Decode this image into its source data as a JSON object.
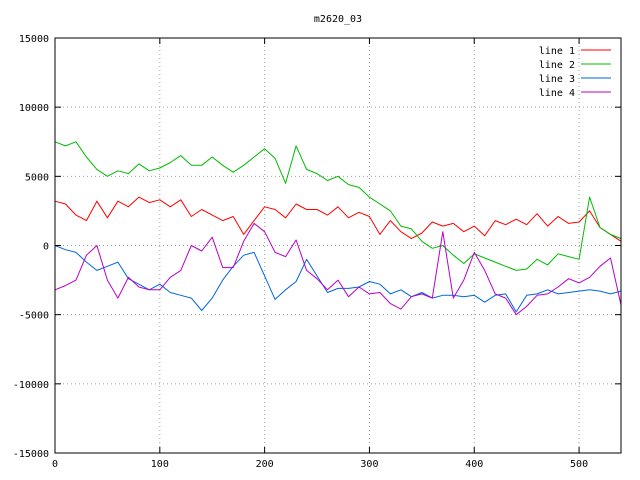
{
  "chart_data": {
    "type": "line",
    "title": "m2620_03",
    "xlabel": "",
    "ylabel": "",
    "xlim": [
      0,
      540
    ],
    "ylim": [
      -15000,
      15000
    ],
    "xticks": [
      0,
      100,
      200,
      300,
      400,
      500
    ],
    "yticks": [
      -15000,
      -10000,
      -5000,
      0,
      5000,
      10000,
      15000
    ],
    "grid": true,
    "legend_position": "top-right",
    "series": [
      {
        "name": "line 1",
        "color": "#ff0000",
        "x": [
          0,
          10,
          20,
          30,
          40,
          50,
          60,
          70,
          80,
          90,
          100,
          110,
          120,
          130,
          140,
          150,
          160,
          170,
          180,
          190,
          200,
          210,
          220,
          230,
          240,
          250,
          260,
          270,
          280,
          290,
          300,
          310,
          320,
          330,
          340,
          350,
          360,
          370,
          380,
          390,
          400,
          410,
          420,
          430,
          440,
          450,
          460,
          470,
          480,
          490,
          500,
          510,
          520,
          530,
          540
        ],
        "y": [
          3200,
          3000,
          2200,
          1800,
          3200,
          2000,
          3200,
          2800,
          3500,
          3100,
          3300,
          2800,
          3300,
          2100,
          2600,
          2200,
          1800,
          2100,
          800,
          1800,
          2800,
          2600,
          2000,
          3000,
          2600,
          2600,
          2200,
          2800,
          2000,
          2400,
          2100,
          800,
          1800,
          1000,
          500,
          900,
          1700,
          1400,
          1600,
          1000,
          1400,
          700,
          1800,
          1500,
          1900,
          1500,
          2300,
          1400,
          2100,
          1600,
          1700,
          2500,
          1300,
          800,
          300
        ]
      },
      {
        "name": "line 2",
        "color": "#00bb00",
        "x": [
          0,
          10,
          20,
          30,
          40,
          50,
          60,
          70,
          80,
          90,
          100,
          110,
          120,
          130,
          140,
          150,
          160,
          170,
          180,
          190,
          200,
          210,
          220,
          230,
          240,
          250,
          260,
          270,
          280,
          290,
          300,
          310,
          320,
          330,
          340,
          350,
          360,
          370,
          380,
          390,
          400,
          410,
          420,
          430,
          440,
          450,
          460,
          470,
          480,
          490,
          500,
          510,
          520,
          530,
          540
        ],
        "y": [
          7500,
          7200,
          7500,
          6400,
          5500,
          5000,
          5400,
          5200,
          5900,
          5400,
          5600,
          6000,
          6500,
          5800,
          5800,
          6400,
          5800,
          5300,
          5800,
          6400,
          7000,
          6300,
          4500,
          7200,
          5500,
          5200,
          4700,
          5000,
          4400,
          4200,
          3500,
          3000,
          2500,
          1400,
          1200,
          300,
          -200,
          0,
          -700,
          -1300,
          -600,
          -900,
          -1200,
          -1500,
          -1800,
          -1700,
          -1000,
          -1400,
          -600,
          -800,
          -1000,
          3500,
          1300,
          800,
          500
        ]
      },
      {
        "name": "line 3",
        "color": "#0066dd",
        "x": [
          0,
          10,
          20,
          30,
          40,
          50,
          60,
          70,
          80,
          90,
          100,
          110,
          120,
          130,
          140,
          150,
          160,
          170,
          180,
          190,
          200,
          210,
          220,
          230,
          240,
          250,
          260,
          270,
          280,
          290,
          300,
          310,
          320,
          330,
          340,
          350,
          360,
          370,
          380,
          390,
          400,
          410,
          420,
          430,
          440,
          450,
          460,
          470,
          480,
          490,
          500,
          510,
          520,
          530,
          540
        ],
        "y": [
          0,
          -300,
          -500,
          -1200,
          -1800,
          -1500,
          -1200,
          -2400,
          -2800,
          -3200,
          -2800,
          -3400,
          -3600,
          -3800,
          -4700,
          -3800,
          -2500,
          -1500,
          -700,
          -500,
          -2200,
          -3900,
          -3200,
          -2600,
          -1000,
          -2200,
          -3400,
          -3100,
          -3100,
          -3000,
          -2600,
          -2800,
          -3500,
          -3200,
          -3700,
          -3400,
          -3800,
          -3600,
          -3600,
          -3700,
          -3600,
          -4100,
          -3600,
          -3500,
          -4800,
          -3600,
          -3500,
          -3200,
          -3500,
          -3400,
          -3300,
          -3200,
          -3300,
          -3500,
          -3300
        ]
      },
      {
        "name": "line 4",
        "color": "#bb00cc",
        "x": [
          0,
          10,
          20,
          30,
          40,
          50,
          60,
          70,
          80,
          90,
          100,
          110,
          120,
          130,
          140,
          150,
          160,
          170,
          180,
          190,
          200,
          210,
          220,
          230,
          240,
          250,
          260,
          270,
          280,
          290,
          300,
          310,
          320,
          330,
          340,
          350,
          360,
          370,
          380,
          390,
          400,
          410,
          420,
          430,
          440,
          450,
          460,
          470,
          480,
          490,
          500,
          510,
          520,
          530,
          540
        ],
        "y": [
          -3200,
          -2900,
          -2500,
          -700,
          0,
          -2500,
          -3800,
          -2300,
          -3000,
          -3200,
          -3200,
          -2300,
          -1800,
          0,
          -400,
          600,
          -1600,
          -1600,
          300,
          1600,
          1000,
          -500,
          -800,
          400,
          -1800,
          -2400,
          -3200,
          -2500,
          -3700,
          -3000,
          -3500,
          -3400,
          -4200,
          -4600,
          -3700,
          -3500,
          -3800,
          1000,
          -3800,
          -2500,
          -500,
          -1800,
          -3500,
          -3800,
          -5000,
          -4400,
          -3600,
          -3500,
          -3000,
          -2400,
          -2700,
          -2300,
          -1500,
          -900,
          -4300
        ]
      }
    ]
  }
}
